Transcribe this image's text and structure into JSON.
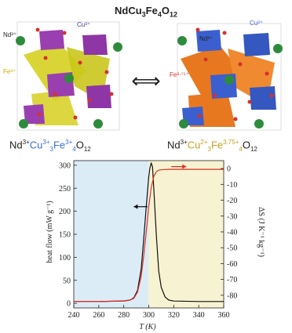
{
  "figure": {
    "title_main": "NdCu",
    "title_sub1": "3",
    "title_mid": "Fe",
    "title_sub2": "4",
    "title_end": "O",
    "title_sub3": "12",
    "exchange_arrow": "⟺"
  },
  "structures": {
    "left": {
      "labels": {
        "nd": "Nd³⁺",
        "cu": "Cu³⁺",
        "fe": "Fe³⁺"
      },
      "formula": {
        "nd": "Nd",
        "nd_sup": "3+",
        "cu": "Cu",
        "cu_sup": "3+",
        "cu_sub": "3",
        "fe": "Fe",
        "fe_sup": "3+",
        "fe_sub": "4",
        "o": "O",
        "o_sub": "12"
      }
    },
    "right": {
      "labels": {
        "nd": "Nd³⁺",
        "cu": "Cu²⁺",
        "fe": "Fe³·⁷⁵⁺"
      },
      "formula": {
        "nd": "Nd",
        "nd_sup": "3+",
        "cu": "Cu",
        "cu_sup": "2+",
        "cu_sub": "3",
        "fe": "Fe",
        "fe_sup": "3.75+",
        "fe_sub": "4",
        "o": "O",
        "o_sub": "12"
      }
    }
  },
  "colors": {
    "nd_sphere": "#2e8b3e",
    "cu_left_octa": "#9a3fb0",
    "fe_left_octa": "#d6d020",
    "cu_right_octa": "#3b5fcf",
    "fe_right_octa": "#e87820",
    "oxygen": "#d8302a",
    "heat_flow_curve": "#111111",
    "entropy_curve": "#e03020",
    "left_region": "#dcecf7",
    "right_region": "#f7f3d2"
  },
  "chart_data": {
    "type": "line",
    "xlabel": "T (K)",
    "ylabel_left": "heat flow (mW g⁻¹)",
    "ylabel_right": "ΔS (J K⁻¹ kg⁻¹)",
    "xlim": [
      240,
      360
    ],
    "ylim_left": [
      -10,
      310
    ],
    "ylim_right": [
      -88,
      5
    ],
    "x_ticks": [
      240,
      260,
      280,
      300,
      320,
      340,
      360
    ],
    "y_ticks_left": [
      0,
      50,
      100,
      150,
      200,
      250,
      300
    ],
    "y_ticks_right": [
      0,
      -10,
      -20,
      -30,
      -40,
      -50,
      -60,
      -70,
      -80
    ],
    "shaded_regions": [
      {
        "from": 240,
        "to": 300,
        "color": "left_region"
      },
      {
        "from": 300,
        "to": 360,
        "color": "right_region"
      }
    ],
    "series": [
      {
        "axis": "left",
        "color": "heat_flow_curve",
        "x": [
          240,
          260,
          280,
          285,
          288,
          291,
          294,
          296,
          298,
          300,
          301,
          302,
          303,
          304,
          306,
          308,
          310,
          313,
          316,
          320,
          340,
          360
        ],
        "y": [
          4,
          4,
          5,
          7,
          12,
          28,
          75,
          140,
          210,
          275,
          295,
          305,
          296,
          250,
          150,
          70,
          35,
          14,
          7,
          5,
          4,
          4
        ]
      },
      {
        "axis": "right",
        "color": "entropy_curve",
        "x": [
          240,
          260,
          280,
          285,
          288,
          291,
          294,
          296,
          298,
          300,
          302,
          304,
          306,
          308,
          310,
          313,
          316,
          320,
          340,
          360
        ],
        "y": [
          -84,
          -84,
          -83.5,
          -83,
          -82,
          -78,
          -68,
          -55,
          -40,
          -24,
          -12,
          -5,
          -2,
          -1,
          -0.8,
          -0.6,
          -0.5,
          -0.5,
          -0.5,
          -0.5
        ]
      }
    ],
    "annotations": [
      {
        "type": "arrow",
        "direction": "left",
        "x": [
          288,
          299
        ],
        "y_left": 210,
        "color": "heat_flow_curve"
      },
      {
        "type": "arrow",
        "direction": "right",
        "x": [
          318,
          330
        ],
        "y_left": 297,
        "color": "entropy_curve"
      }
    ]
  }
}
